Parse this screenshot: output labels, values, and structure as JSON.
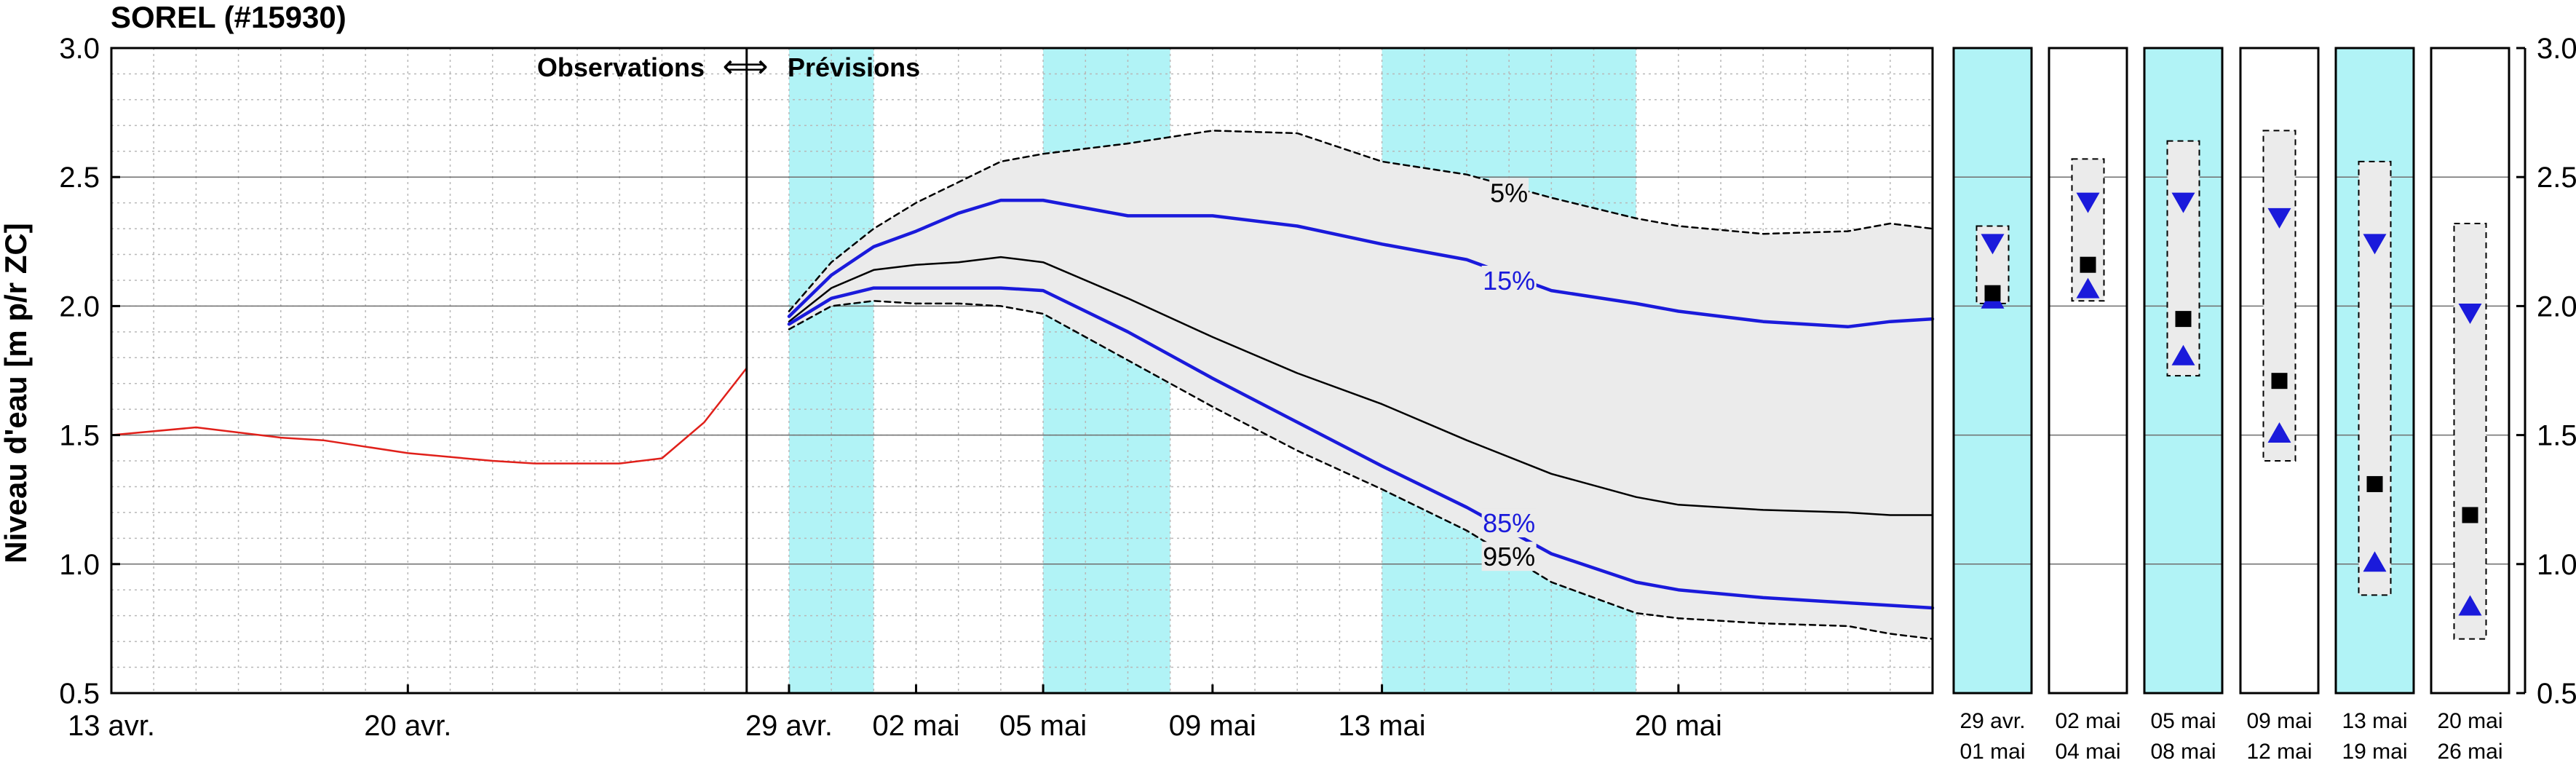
{
  "chart_data": {
    "type": "line",
    "title": "SOREL (#15930)",
    "ylabel": "Niveau d'eau [m p/r ZC]",
    "ylim": [
      0.5,
      3.0
    ],
    "yticks": [
      "0.5",
      "1.0",
      "1.5",
      "2.0",
      "2.5",
      "3.0"
    ],
    "xlim": [
      "13 avr.",
      "26 mai"
    ],
    "xticks": [
      "13 avr.",
      "20 avr.",
      "29 avr.",
      "02 mai",
      "05 mai",
      "09 mai",
      "13 mai",
      "20 mai"
    ],
    "annotation_obs": "Observations",
    "annotation_arrow": "⟺",
    "annotation_prev": "Prévisions",
    "forecast_start": "28 avr.",
    "highlight_periods": [
      [
        "29 avr.",
        "01 mai"
      ],
      [
        "05 mai",
        "08 mai"
      ],
      [
        "13 mai",
        "19 mai"
      ]
    ],
    "x": [
      "13 avr.",
      "15 avr.",
      "17 avr.",
      "18 avr.",
      "20 avr.",
      "22 avr.",
      "23 avr.",
      "25 avr.",
      "26 avr.",
      "27 avr.",
      "28 avr.",
      "29 avr.",
      "30 avr.",
      "01 mai",
      "02 mai",
      "03 mai",
      "04 mai",
      "05 mai",
      "07 mai",
      "09 mai",
      "11 mai",
      "13 mai",
      "15 mai",
      "17 mai",
      "19 mai",
      "20 mai",
      "22 mai",
      "24 mai",
      "25 mai",
      "26 mai"
    ],
    "series": [
      {
        "name": "Observations",
        "color": "#e0201a",
        "values": [
          1.5,
          1.53,
          1.49,
          1.48,
          1.43,
          1.4,
          1.39,
          1.39,
          1.41,
          1.55,
          1.76,
          null,
          null,
          null,
          null,
          null,
          null,
          null,
          null,
          null,
          null,
          null,
          null,
          null,
          null,
          null,
          null,
          null,
          null,
          null
        ]
      },
      {
        "name": "5%",
        "color": "#000000",
        "values": [
          null,
          null,
          null,
          null,
          null,
          null,
          null,
          null,
          null,
          null,
          null,
          1.98,
          2.17,
          2.3,
          2.4,
          2.48,
          2.56,
          2.59,
          2.63,
          2.68,
          2.67,
          2.56,
          2.51,
          2.42,
          2.34,
          2.31,
          2.28,
          2.29,
          2.32,
          2.3
        ]
      },
      {
        "name": "15%",
        "color": "#1a1adb",
        "values": [
          null,
          null,
          null,
          null,
          null,
          null,
          null,
          null,
          null,
          null,
          null,
          1.96,
          2.12,
          2.23,
          2.29,
          2.36,
          2.41,
          2.41,
          2.35,
          2.35,
          2.31,
          2.24,
          2.18,
          2.06,
          2.01,
          1.98,
          1.94,
          1.92,
          1.94,
          1.95
        ]
      },
      {
        "name": "Médiane",
        "color": "#000000",
        "values": [
          null,
          null,
          null,
          null,
          null,
          null,
          null,
          null,
          null,
          null,
          null,
          1.94,
          2.07,
          2.14,
          2.16,
          2.17,
          2.19,
          2.17,
          2.03,
          1.88,
          1.74,
          1.62,
          1.48,
          1.35,
          1.26,
          1.23,
          1.21,
          1.2,
          1.19,
          1.19
        ]
      },
      {
        "name": "85%",
        "color": "#1a1adb",
        "values": [
          null,
          null,
          null,
          null,
          null,
          null,
          null,
          null,
          null,
          null,
          null,
          1.93,
          2.03,
          2.07,
          2.07,
          2.07,
          2.07,
          2.06,
          1.9,
          1.72,
          1.55,
          1.38,
          1.22,
          1.04,
          0.93,
          0.9,
          0.87,
          0.85,
          0.84,
          0.83
        ]
      },
      {
        "name": "95%",
        "color": "#000000",
        "values": [
          null,
          null,
          null,
          null,
          null,
          null,
          null,
          null,
          null,
          null,
          null,
          1.91,
          2.0,
          2.02,
          2.01,
          2.01,
          2.0,
          1.97,
          1.79,
          1.61,
          1.44,
          1.29,
          1.13,
          0.93,
          0.81,
          0.79,
          0.77,
          0.76,
          0.73,
          0.71
        ]
      }
    ],
    "band_labels": [
      {
        "text": "5%",
        "x": "16 mai",
        "y": 2.44,
        "color": "#000000"
      },
      {
        "text": "15%",
        "x": "16 mai",
        "y": 2.1,
        "color": "#1a1adb"
      },
      {
        "text": "85%",
        "x": "16 mai",
        "y": 1.16,
        "color": "#1a1adb"
      },
      {
        "text": "95%",
        "x": "16 mai",
        "y": 1.03,
        "color": "#000000"
      }
    ],
    "panels": [
      {
        "label1": "29 avr.",
        "label2": "01 mai",
        "highlight": true,
        "box_top": 2.31,
        "box_bottom": 2.01,
        "median": 2.05,
        "p15": 2.24,
        "p85": 2.03
      },
      {
        "label1": "02 mai",
        "label2": "04 mai",
        "highlight": false,
        "box_top": 2.57,
        "box_bottom": 2.02,
        "median": 2.16,
        "p15": 2.4,
        "p85": 2.07
      },
      {
        "label1": "05 mai",
        "label2": "08 mai",
        "highlight": true,
        "box_top": 2.64,
        "box_bottom": 1.73,
        "median": 1.95,
        "p15": 2.4,
        "p85": 1.81
      },
      {
        "label1": "09 mai",
        "label2": "12 mai",
        "highlight": false,
        "box_top": 2.68,
        "box_bottom": 1.4,
        "median": 1.71,
        "p15": 2.34,
        "p85": 1.51
      },
      {
        "label1": "13 mai",
        "label2": "19 mai",
        "highlight": true,
        "box_top": 2.56,
        "box_bottom": 0.88,
        "median": 1.31,
        "p15": 2.24,
        "p85": 1.01
      },
      {
        "label1": "20 mai",
        "label2": "26 mai",
        "highlight": false,
        "box_top": 2.32,
        "box_bottom": 0.71,
        "median": 1.19,
        "p15": 1.97,
        "p85": 0.84
      }
    ],
    "colors": {
      "highlight": "#b1f3f6",
      "band_fill": "#ebebeb",
      "forecast_blue": "#1a1adb",
      "observed_red": "#e0201a"
    },
    "grid": true,
    "legend": "none"
  }
}
